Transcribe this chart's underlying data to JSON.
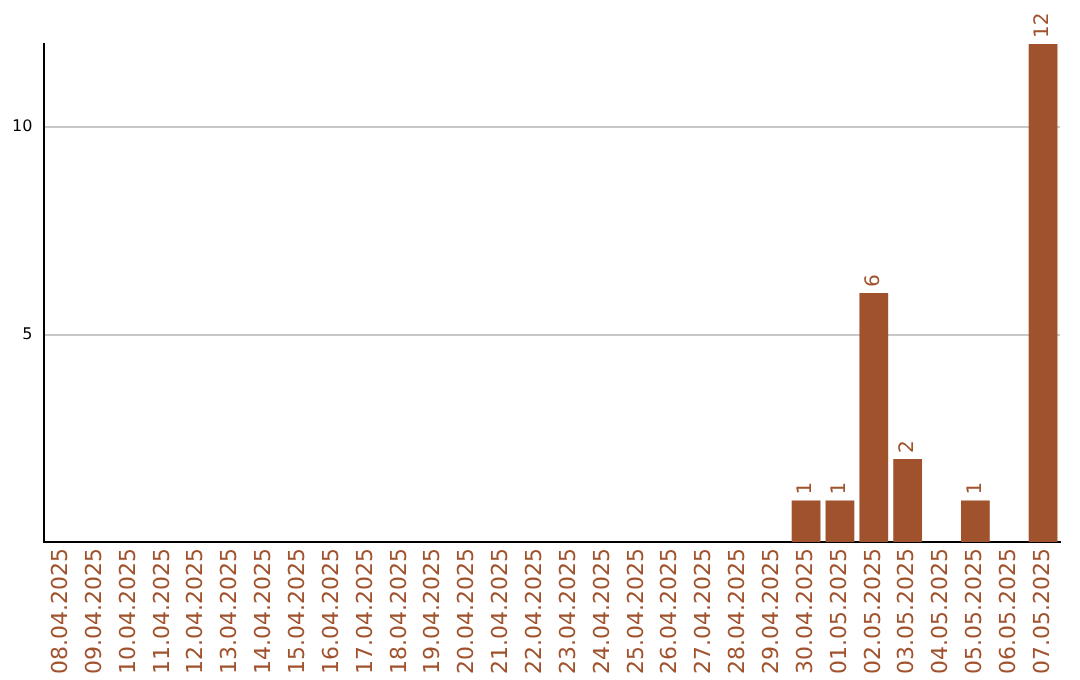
{
  "chart_data": {
    "type": "bar",
    "categories": [
      "08.04.2025",
      "09.04.2025",
      "10.04.2025",
      "11.04.2025",
      "12.04.2025",
      "13.04.2025",
      "14.04.2025",
      "15.04.2025",
      "16.04.2025",
      "17.04.2025",
      "18.04.2025",
      "19.04.2025",
      "20.04.2025",
      "21.04.2025",
      "22.04.2025",
      "23.04.2025",
      "24.04.2025",
      "25.04.2025",
      "26.04.2025",
      "27.04.2025",
      "28.04.2025",
      "29.04.2025",
      "30.04.2025",
      "01.05.2025",
      "02.05.2025",
      "03.05.2025",
      "04.05.2025",
      "05.05.2025",
      "06.05.2025",
      "07.05.2025"
    ],
    "values": [
      0,
      0,
      0,
      0,
      0,
      0,
      0,
      0,
      0,
      0,
      0,
      0,
      0,
      0,
      0,
      0,
      0,
      0,
      0,
      0,
      0,
      0,
      1,
      1,
      6,
      2,
      0,
      1,
      0,
      12
    ],
    "value_labels": [
      null,
      null,
      null,
      null,
      null,
      null,
      null,
      null,
      null,
      null,
      null,
      null,
      null,
      null,
      null,
      null,
      null,
      null,
      null,
      null,
      null,
      null,
      "1",
      "1",
      "6",
      "2",
      null,
      "1",
      null,
      "12"
    ],
    "color": "#a0522d",
    "ylim": [
      0,
      12
    ],
    "yticks": [
      5,
      10
    ],
    "grid": "y",
    "legend": false
  }
}
